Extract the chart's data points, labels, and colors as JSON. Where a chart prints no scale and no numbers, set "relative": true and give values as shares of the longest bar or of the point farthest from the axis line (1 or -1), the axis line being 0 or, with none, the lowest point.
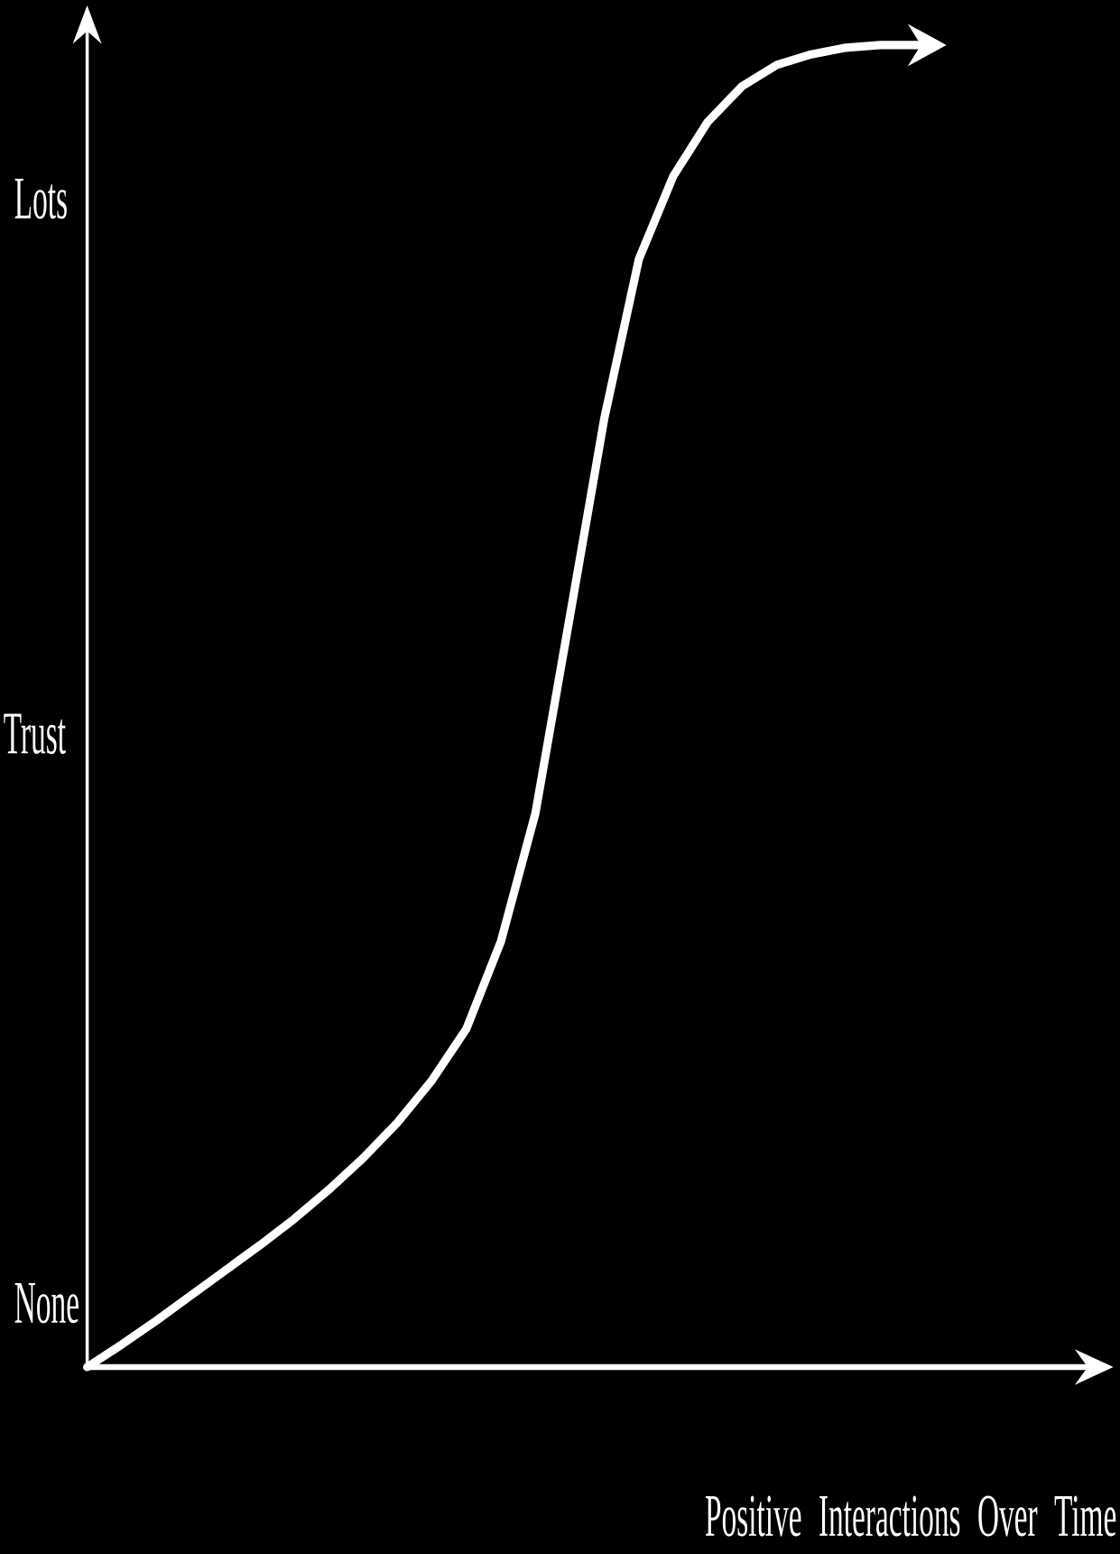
{
  "chart_data": {
    "type": "line",
    "xlabel": "Positive Interactions Over Time",
    "ylabel": "Trust",
    "annotations": [
      "None",
      "Lots"
    ],
    "categories": [
      null,
      null,
      null,
      null,
      null,
      null,
      null,
      null,
      null,
      null,
      null,
      null,
      null,
      null,
      null,
      null,
      null,
      null,
      null,
      null,
      null,
      null,
      null,
      null,
      null
    ],
    "relative": true,
    "marker": "none",
    "line_style": "solid",
    "series": [
      {
        "color": "#ffffff",
        "values": [
          0,
          0.017,
          0.035,
          0.054,
          0.073,
          0.092,
          0.112,
          0.134,
          0.158,
          0.185,
          0.217,
          0.256,
          0.322,
          0.419,
          0.568,
          0.718,
          0.838,
          0.901,
          0.942,
          0.969,
          0.985,
          0.993,
          0.998,
          1.0,
          1.0
        ]
      }
    ]
  }
}
